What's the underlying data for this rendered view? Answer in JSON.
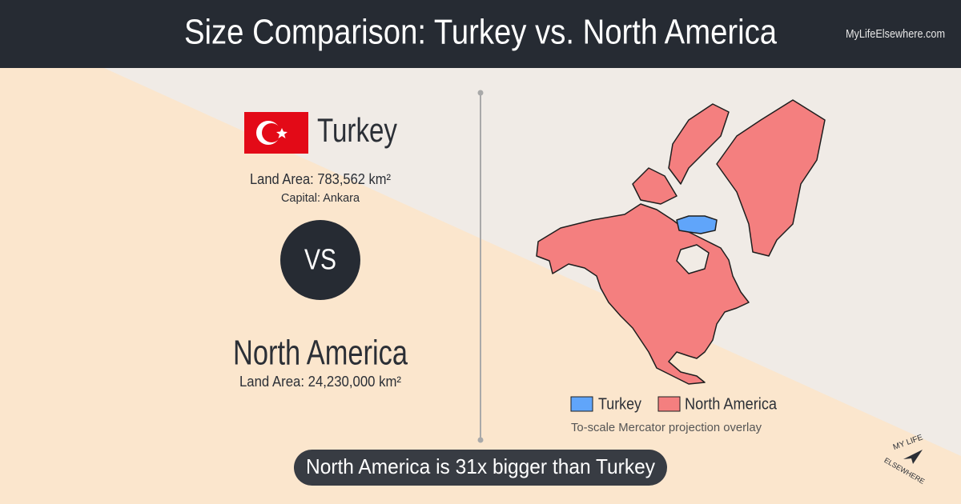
{
  "header": {
    "title": "Size Comparison: Turkey vs. North America",
    "site": "MyLifeElsewhere.com"
  },
  "left": {
    "country_a": {
      "name": "Turkey",
      "land_area": "Land Area: 783,562 km²",
      "capital": "Capital: Ankara"
    },
    "vs": "VS",
    "country_b": {
      "name": "North America",
      "land_area": "Land Area: 24,230,000 km²"
    }
  },
  "map": {
    "legend": [
      "Turkey",
      "North America"
    ],
    "caption": "To-scale Mercator projection overlay"
  },
  "banner": "North America is 31x bigger than Turkey",
  "logo": [
    "MY LIFE",
    "ELSEWHERE"
  ]
}
